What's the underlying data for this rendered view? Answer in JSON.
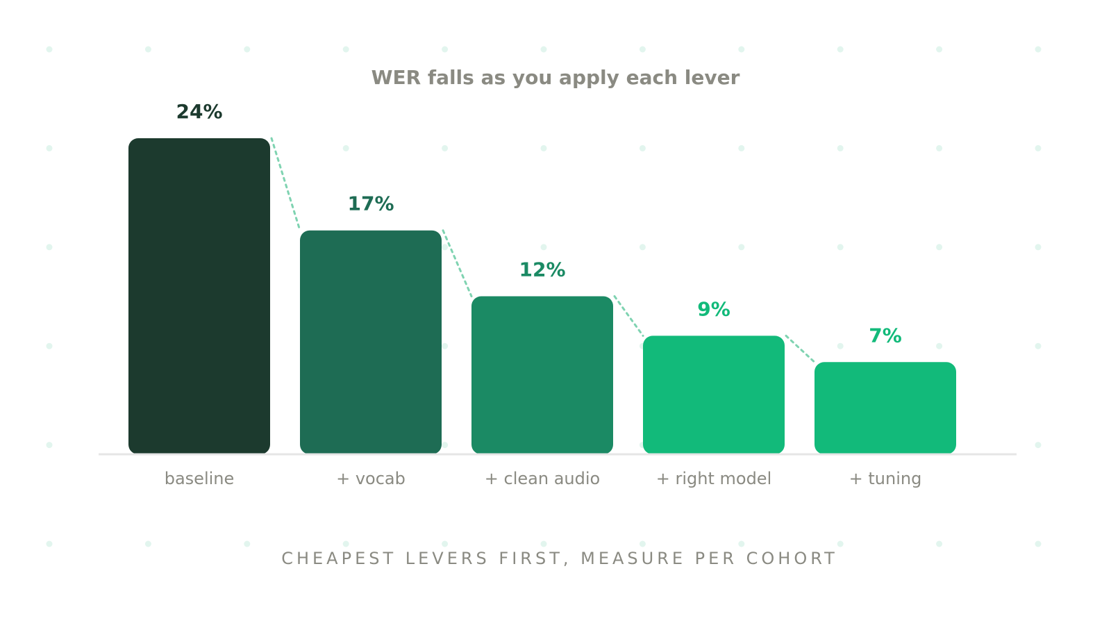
{
  "chart_data": {
    "type": "bar",
    "title": "WER falls as you apply each lever",
    "categories": [
      "baseline",
      "+ vocab",
      "+ clean audio",
      "+ right model",
      "+ tuning"
    ],
    "values": [
      24,
      17,
      12,
      9,
      7
    ],
    "value_labels": [
      "24%",
      "17%",
      "12%",
      "9%",
      "7%"
    ],
    "bar_colors": [
      "#1c3a2e",
      "#1e6c54",
      "#1b8a64",
      "#12ba7a",
      "#12ba7a"
    ],
    "label_colors": [
      "#1c3a2e",
      "#1e6c54",
      "#1b8a64",
      "#12ba7a",
      "#12ba7a"
    ],
    "connector_color": "#7fd3b1",
    "axis_color": "#e6e6e6",
    "dot_color": "#e2f5ee",
    "ylim": [
      0,
      24
    ],
    "xlabel": "",
    "ylabel": "",
    "grid": false,
    "legend": "none",
    "caption": "CHEAPEST LEVERS FIRST, MEASURE PER COHORT"
  }
}
